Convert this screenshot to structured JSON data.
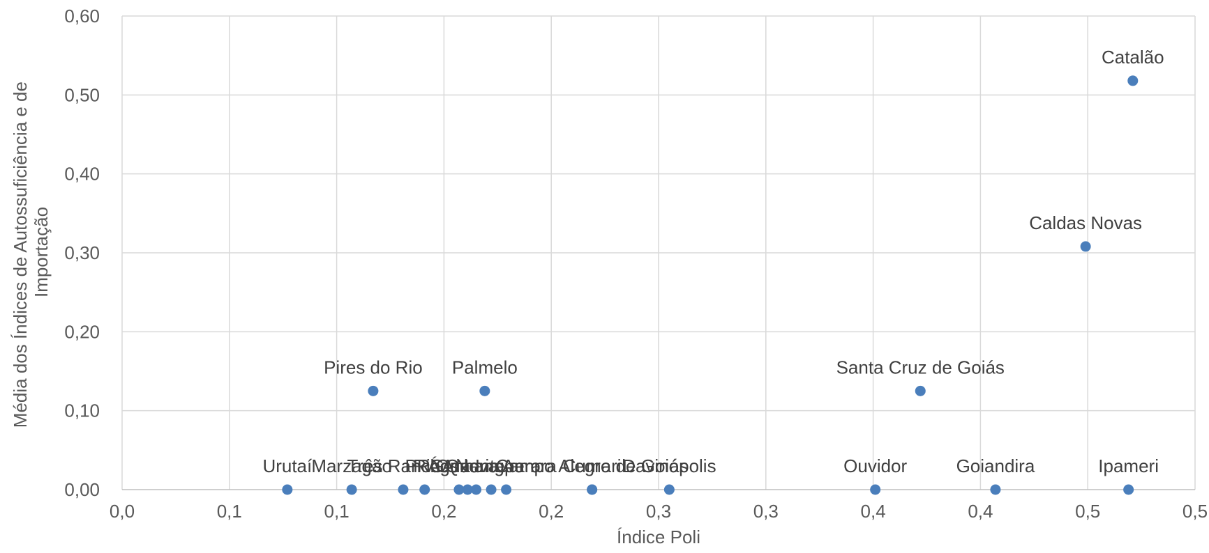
{
  "chart_data": {
    "type": "scatter",
    "title": "",
    "xlabel": "Índice Poli",
    "ylabel_lines": [
      "Média dos Índices de Autossuficiência  e de",
      "Importação"
    ],
    "xlim": [
      0,
      0.5
    ],
    "ylim": [
      0,
      0.6
    ],
    "x_ticks": [
      0,
      0.05,
      0.1,
      0.15,
      0.2,
      0.25,
      0.3,
      0.35,
      0.4,
      0.45,
      0.5
    ],
    "x_tick_labels": [
      "0,0",
      "0,1",
      "0,1",
      "0,2",
      "0,2",
      "0,3",
      "0,3",
      "0,4",
      "0,4",
      "0,5",
      "0,5"
    ],
    "y_ticks": [
      0,
      0.1,
      0.2,
      0.3,
      0.4,
      0.5,
      0.6
    ],
    "y_tick_labels": [
      "0,00",
      "0,10",
      "0,20",
      "0,30",
      "0,40",
      "0,50",
      "0,60"
    ],
    "grid": true,
    "marker_color": "#4a7ebb",
    "points": [
      {
        "label": "Catalão",
        "x": 0.471,
        "y": 0.518
      },
      {
        "label": "Caldas Novas",
        "x": 0.449,
        "y": 0.308
      },
      {
        "label": "Santa Cruz de Goiás",
        "x": 0.372,
        "y": 0.125
      },
      {
        "label": "Pires do Rio",
        "x": 0.117,
        "y": 0.125
      },
      {
        "label": "Palmelo",
        "x": 0.169,
        "y": 0.125
      },
      {
        "label": "Urutaí",
        "x": 0.077,
        "y": 0.0
      },
      {
        "label": "Marzagão",
        "x": 0.107,
        "y": 0.0
      },
      {
        "label": "Três Ranchos",
        "x": 0.131,
        "y": 0.0
      },
      {
        "label": "PRG",
        "x": 0.141,
        "y": 0.0
      },
      {
        "label": "Rio Quente",
        "x": 0.157,
        "y": 0.0
      },
      {
        "label": "Orizona",
        "x": 0.161,
        "y": 0.0
      },
      {
        "label": "Água Limpa",
        "x": 0.165,
        "y": 0.0
      },
      {
        "label": "Nova Aurora",
        "x": 0.179,
        "y": 0.0
      },
      {
        "label": "Anhanguera",
        "x": 0.172,
        "y": 0.0
      },
      {
        "label": "Campo Alegre de Goiás",
        "x": 0.219,
        "y": 0.0
      },
      {
        "label": "Cumari",
        "x": 0.219,
        "y": 0.0
      },
      {
        "label": "Davinópolis",
        "x": 0.255,
        "y": 0.0
      },
      {
        "label": "Ouvidor",
        "x": 0.351,
        "y": 0.0
      },
      {
        "label": "Goiandira",
        "x": 0.407,
        "y": 0.0
      },
      {
        "label": "Ipameri",
        "x": 0.469,
        "y": 0.0
      }
    ]
  }
}
